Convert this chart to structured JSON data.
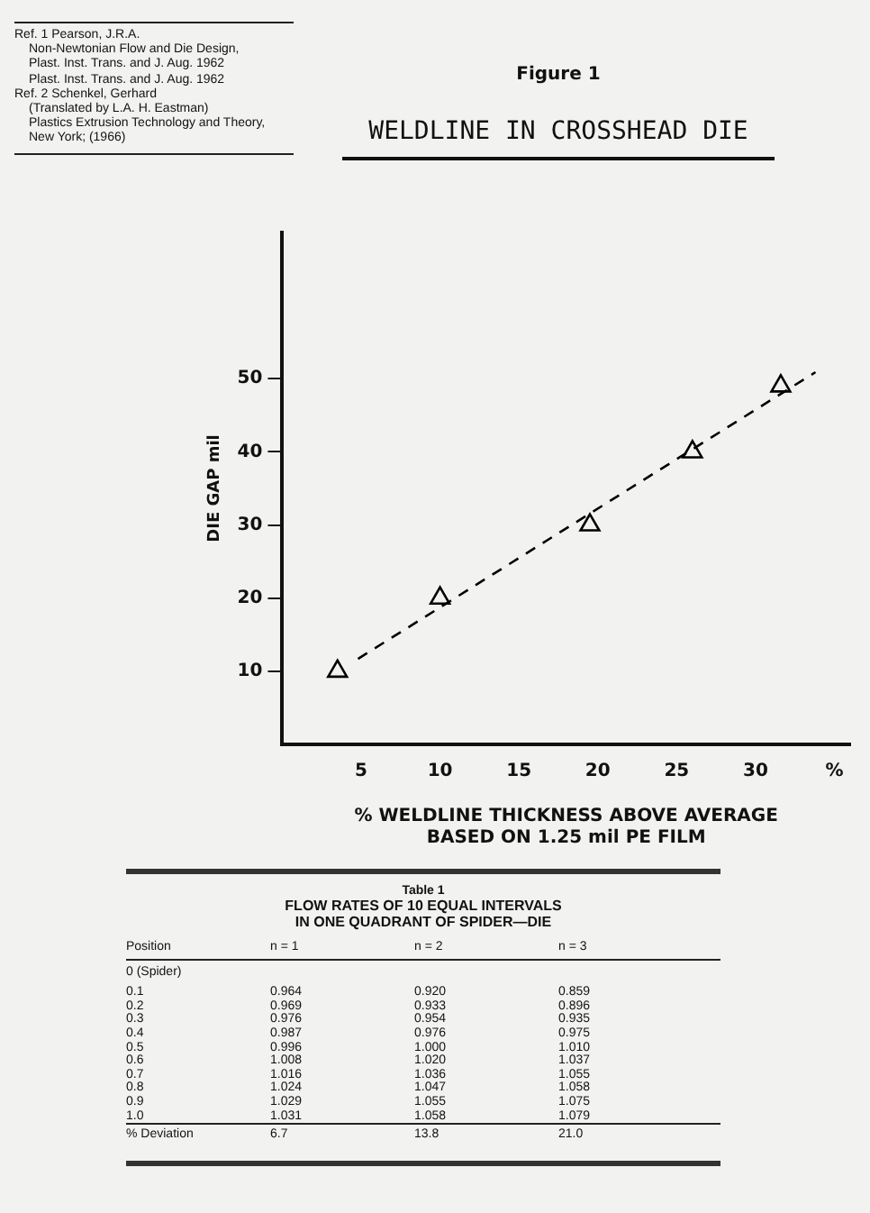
{
  "chart_data": [
    {
      "type": "scatter",
      "subtitle": "Figure 1",
      "title": "WELDLINE IN CROSSHEAD DIE",
      "xlabel": "% WELDLINE THICKNESS ABOVE AVERAGE\nBASED ON 1.25 mil PE FILM",
      "ylabel": "DIE GAP mil",
      "xlim": [
        0,
        36
      ],
      "xticks": [
        5,
        10,
        15,
        20,
        25,
        30,
        {
          "value": 35,
          "label": "%"
        }
      ],
      "ylim": [
        0,
        70
      ],
      "yticks": [
        10,
        20,
        30,
        40,
        50
      ],
      "grid": false,
      "legend": false,
      "series": [
        {
          "type": "scatter",
          "color": "#000000",
          "marker": "triangle",
          "x": [
            3.5,
            10.0,
            19.5,
            26.0,
            31.6
          ],
          "values": [
            10,
            20,
            30,
            40,
            49
          ]
        },
        {
          "type": "line",
          "color": "#000000",
          "marker": "none",
          "line_style": "dashed",
          "x": [
            4.8,
            33.8
          ],
          "values": [
            11.7,
            50.9
          ]
        }
      ],
      "annotations": [
        "Ref. 1  Pearson, J.R.A.",
        "Non-Newtonian Flow and Die Design,",
        "Plast. Inst. Trans. and J. Aug. 1962",
        "Plast. Inst. Trans. and J. Aug. 1962",
        "Ref. 2  Schenkel, Gerhard",
        "(Translated by L.A. H. Eastman)",
        "Plastics Extrusion Technology and Theory,",
        "New York; (1966)"
      ]
    },
    {
      "type": "other",
      "title": "Table 1",
      "subtitle": "FLOW RATES OF 10 EQUAL INTERVALS\nIN ONE QUADRANT OF SPIDER—DIE",
      "annotations": [
        "Position\tn = 1\tn = 2\tn = 3",
        "0 (Spider)",
        "0.1\t0.964\t0.920\t0.859",
        "0.2\t0.969\t0.933\t0.896",
        "0.3\t0.976\t0.954\t0.935",
        "0.4\t0.987\t0.976\t0.975",
        "0.5\t0.996\t1.000\t1.010",
        "0.6\t1.008\t1.020\t1.037",
        "0.7\t1.016\t1.036\t1.055",
        "0.8\t1.024\t1.047\t1.058",
        "0.9\t1.029\t1.055\t1.075",
        "1.0\t1.031\t1.058\t1.079",
        "% Deviation\t6.7\t13.8\t21.0"
      ]
    }
  ]
}
